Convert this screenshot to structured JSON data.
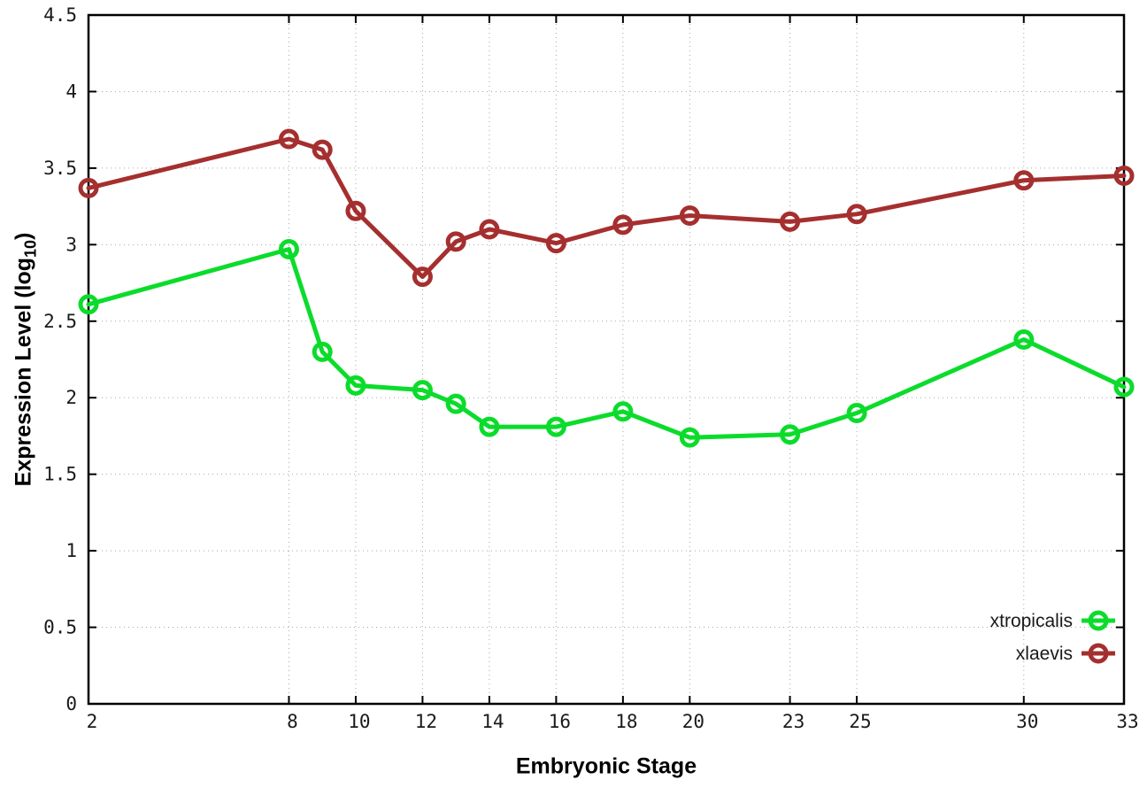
{
  "figure": {
    "background": "#ffffff",
    "xlabel": "Embryonic Stage",
    "ylabel_pre": "Expression Level (log",
    "ylabel_sub": "10",
    "ylabel_post": ")"
  },
  "chart_data": {
    "type": "line",
    "title": "",
    "xlabel": "Embryonic Stage",
    "ylabel": "Expression Level (log10)",
    "x": [
      2,
      8,
      9,
      10,
      12,
      13,
      14,
      16,
      18,
      20,
      23,
      25,
      30,
      33
    ],
    "series": [
      {
        "name": "xtropicalis",
        "color": "#0bdc2b",
        "values": [
          2.61,
          2.97,
          2.3,
          2.08,
          2.05,
          1.96,
          1.81,
          1.81,
          1.91,
          1.74,
          1.76,
          1.9,
          2.38,
          2.07
        ]
      },
      {
        "name": "xlaevis",
        "color": "#a52f2f",
        "values": [
          3.37,
          3.69,
          3.62,
          3.22,
          2.79,
          3.02,
          3.1,
          3.01,
          3.13,
          3.19,
          3.15,
          3.2,
          3.42,
          3.45
        ]
      }
    ],
    "x_tick_values": [
      2,
      8,
      10,
      12,
      14,
      16,
      18,
      20,
      23,
      25,
      30,
      33
    ],
    "x_tick_labels": [
      "2",
      "8",
      "10",
      "12",
      "14",
      "16",
      "18",
      "20",
      "23",
      "25",
      "30",
      "33"
    ],
    "y_tick_values": [
      0,
      0.5,
      1,
      1.5,
      2,
      2.5,
      3,
      3.5,
      4,
      4.5
    ],
    "y_tick_labels": [
      "0",
      "0.5",
      "1",
      "1.5",
      "2",
      "2.5",
      "3",
      "3.5",
      "4",
      "4.5"
    ],
    "xlim": [
      2,
      33
    ],
    "ylim": [
      0,
      4.5
    ],
    "grid": true,
    "marker": "open-circle",
    "legend": {
      "position": "inside-right-lower",
      "entries": [
        "xtropicalis",
        "xlaevis"
      ]
    },
    "colors": {
      "grid": "#a8a8a8",
      "axis": "#000000",
      "tick_text": "#1a1a1a"
    }
  }
}
